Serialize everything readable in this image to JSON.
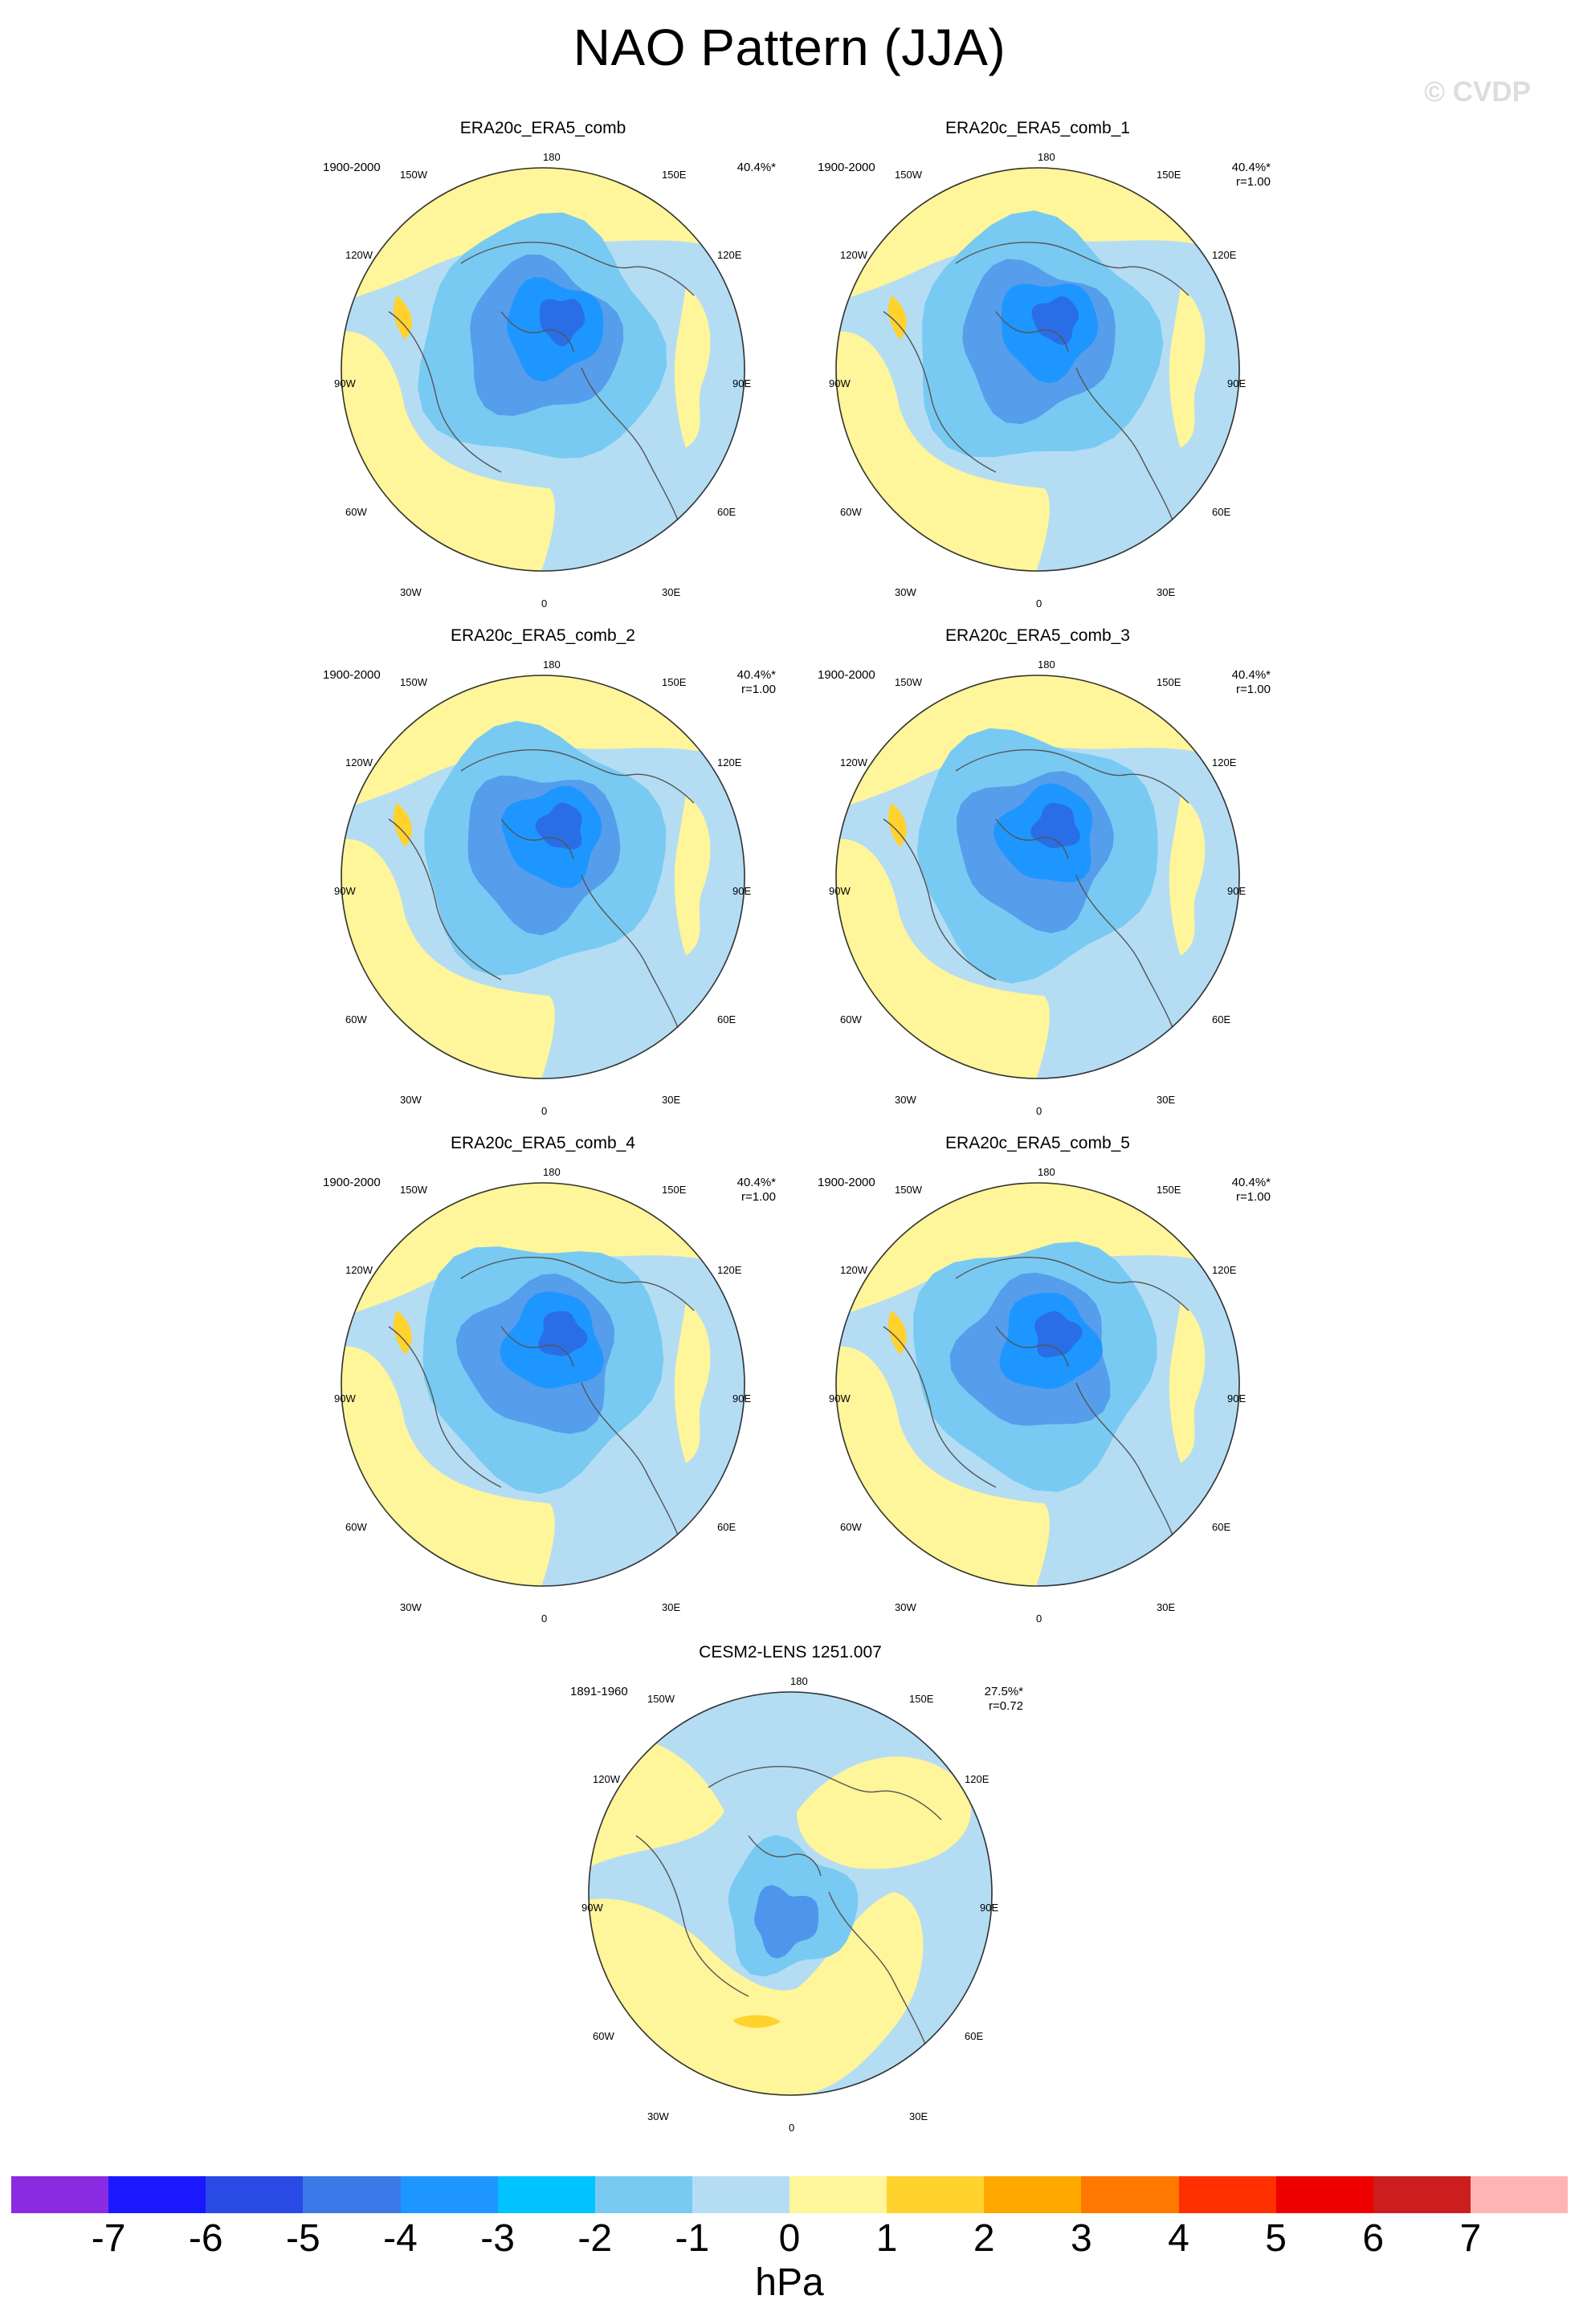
{
  "figure": {
    "title": "NAO Pattern (JJA)",
    "watermark": "© CVDP",
    "unit": "hPa"
  },
  "map_labels": {
    "top": "180",
    "bottom": "0",
    "upper_left": "150W",
    "upper_right": "150E",
    "left_high": "120W",
    "right_high": "120E",
    "left": "90W",
    "right": "90E",
    "left_low": "60W",
    "right_low": "60E",
    "lower_left": "30W",
    "lower_right": "30E"
  },
  "panels": [
    {
      "title": "ERA20c_ERA5_comb",
      "period": "1900-2000",
      "pct": "40.4%*",
      "r": ""
    },
    {
      "title": "ERA20c_ERA5_comb_1",
      "period": "1900-2000",
      "pct": "40.4%*",
      "r": "r=1.00"
    },
    {
      "title": "ERA20c_ERA5_comb_2",
      "period": "1900-2000",
      "pct": "40.4%*",
      "r": "r=1.00"
    },
    {
      "title": "ERA20c_ERA5_comb_3",
      "period": "1900-2000",
      "pct": "40.4%*",
      "r": "r=1.00"
    },
    {
      "title": "ERA20c_ERA5_comb_4",
      "period": "1900-2000",
      "pct": "40.4%*",
      "r": "r=1.00"
    },
    {
      "title": "ERA20c_ERA5_comb_5",
      "period": "1900-2000",
      "pct": "40.4%*",
      "r": "r=1.00"
    },
    {
      "title": "CESM2-LENS 1251.007",
      "period": "1891-1960",
      "pct": "27.5%*",
      "r": "r=0.72"
    }
  ],
  "colorbar": {
    "colors": [
      "#8a2be2",
      "#1a18ff",
      "#2a4ae6",
      "#3b78e8",
      "#1e96ff",
      "#00c3ff",
      "#78caf2",
      "#b4ddf4",
      "#fff59a",
      "#ffd22e",
      "#ffa800",
      "#ff7800",
      "#ff3000",
      "#ee0000",
      "#cc1e1e",
      "#ffb4b4"
    ],
    "ticks": [
      "-7",
      "-6",
      "-5",
      "-4",
      "-3",
      "-2",
      "-1",
      "0",
      "1",
      "2",
      "3",
      "4",
      "5",
      "6",
      "7"
    ]
  }
}
